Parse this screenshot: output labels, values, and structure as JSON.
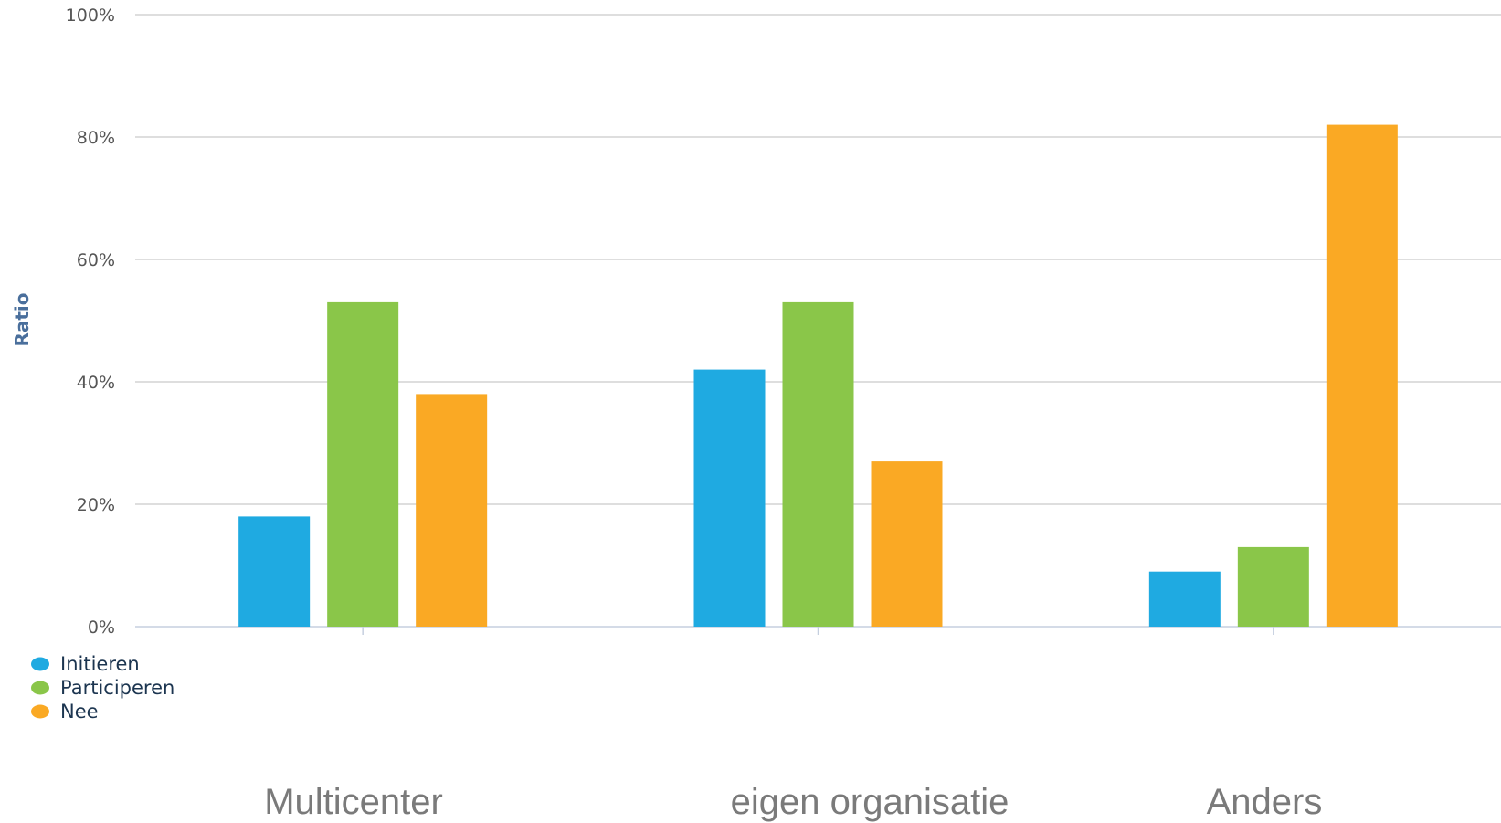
{
  "chart_data": {
    "type": "bar",
    "categories": [
      "Multicenter",
      "eigen organisatie",
      "Anders"
    ],
    "series": [
      {
        "name": "Initieren",
        "color": "#1faae1",
        "values": [
          18,
          42,
          9
        ]
      },
      {
        "name": "Participeren",
        "color": "#8ac649",
        "values": [
          53,
          53,
          13
        ]
      },
      {
        "name": "Nee",
        "color": "#faa924",
        "values": [
          38,
          27,
          82
        ]
      }
    ],
    "ylabel": "Ratio",
    "ylim": [
      0,
      100
    ],
    "yticks": [
      "0%",
      "20%",
      "40%",
      "60%",
      "80%",
      "100%"
    ],
    "grid": true,
    "legend": "bottom-left"
  }
}
